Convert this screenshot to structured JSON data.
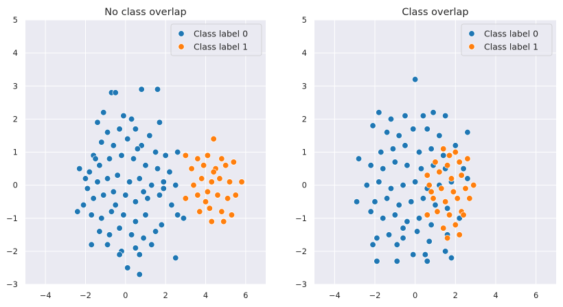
{
  "chart_data": [
    {
      "type": "scatter",
      "title": "No class overlap",
      "xlim": [
        -5,
        7
      ],
      "ylim": [
        -3,
        5
      ],
      "xticks": [
        -4,
        -2,
        0,
        2,
        4,
        6
      ],
      "yticks": [
        -3,
        -2,
        -1,
        0,
        1,
        2,
        3,
        4,
        5
      ],
      "grid": true,
      "legend_position": "top-right",
      "series": [
        {
          "name": "Class label 0",
          "color": "#1f77b4",
          "points": [
            [
              -1.4,
              1.9
            ],
            [
              -0.7,
              2.8
            ],
            [
              -0.5,
              2.8
            ],
            [
              0.8,
              2.9
            ],
            [
              1.6,
              2.9
            ],
            [
              -1.1,
              2.2
            ],
            [
              -0.1,
              2.1
            ],
            [
              0.3,
              2.0
            ],
            [
              1.7,
              1.9
            ],
            [
              -0.9,
              1.6
            ],
            [
              -0.3,
              1.7
            ],
            [
              0.5,
              1.7
            ],
            [
              1.2,
              1.5
            ],
            [
              -1.6,
              0.9
            ],
            [
              -1.2,
              1.3
            ],
            [
              -0.6,
              1.2
            ],
            [
              0.1,
              1.4
            ],
            [
              0.8,
              1.2
            ],
            [
              1.5,
              1.0
            ],
            [
              2.0,
              0.9
            ],
            [
              2.6,
              1.0
            ],
            [
              -2.3,
              0.5
            ],
            [
              -1.8,
              0.4
            ],
            [
              -1.3,
              0.6
            ],
            [
              -0.8,
              0.8
            ],
            [
              -0.2,
              0.9
            ],
            [
              0.4,
              0.8
            ],
            [
              1.0,
              0.6
            ],
            [
              1.6,
              0.5
            ],
            [
              2.2,
              0.4
            ],
            [
              -1.9,
              -0.1
            ],
            [
              -1.4,
              0.1
            ],
            [
              -0.9,
              0.2
            ],
            [
              -0.4,
              0.3
            ],
            [
              0.2,
              0.1
            ],
            [
              0.7,
              0.2
            ],
            [
              1.3,
              0.0
            ],
            [
              1.9,
              0.1
            ],
            [
              2.5,
              0.0
            ],
            [
              -2.1,
              -0.6
            ],
            [
              -1.6,
              -0.4
            ],
            [
              -1.1,
              -0.3
            ],
            [
              -0.6,
              -0.2
            ],
            [
              0.0,
              -0.3
            ],
            [
              0.5,
              -0.5
            ],
            [
              1.1,
              -0.4
            ],
            [
              1.7,
              -0.3
            ],
            [
              2.3,
              -0.6
            ],
            [
              -2.4,
              -0.8
            ],
            [
              -1.7,
              -0.9
            ],
            [
              -1.2,
              -1.0
            ],
            [
              -0.7,
              -0.8
            ],
            [
              -0.1,
              -0.9
            ],
            [
              0.5,
              -1.1
            ],
            [
              1.0,
              -0.9
            ],
            [
              1.8,
              -1.2
            ],
            [
              2.6,
              -0.9
            ],
            [
              2.9,
              -1.0
            ],
            [
              -1.3,
              -1.4
            ],
            [
              -0.8,
              -1.5
            ],
            [
              -0.3,
              -1.3
            ],
            [
              0.3,
              -1.5
            ],
            [
              0.9,
              -1.6
            ],
            [
              1.5,
              -1.4
            ],
            [
              -1.7,
              -1.8
            ],
            [
              -0.9,
              -1.8
            ],
            [
              -0.2,
              -2.0
            ],
            [
              0.5,
              -1.9
            ],
            [
              1.3,
              -1.8
            ],
            [
              -0.3,
              -2.1
            ],
            [
              0.7,
              -2.1
            ],
            [
              2.5,
              -2.2
            ],
            [
              0.1,
              -2.5
            ],
            [
              0.7,
              -2.7
            ],
            [
              -1.5,
              0.8
            ],
            [
              0.6,
              1.1
            ],
            [
              1.9,
              -0.1
            ],
            [
              -0.5,
              -0.6
            ],
            [
              0.9,
              -0.2
            ],
            [
              -2.0,
              0.2
            ]
          ]
        },
        {
          "name": "Class label 1",
          "color": "#ff7f0e",
          "points": [
            [
              3.0,
              0.9
            ],
            [
              4.4,
              1.4
            ],
            [
              3.6,
              0.8
            ],
            [
              4.1,
              0.9
            ],
            [
              4.8,
              0.8
            ],
            [
              3.3,
              0.5
            ],
            [
              3.9,
              0.6
            ],
            [
              4.5,
              0.5
            ],
            [
              5.0,
              0.6
            ],
            [
              5.4,
              0.7
            ],
            [
              3.4,
              0.0
            ],
            [
              3.8,
              0.2
            ],
            [
              4.3,
              0.1
            ],
            [
              4.7,
              0.2
            ],
            [
              5.2,
              0.1
            ],
            [
              5.8,
              0.1
            ],
            [
              3.0,
              -0.4
            ],
            [
              3.6,
              -0.3
            ],
            [
              4.1,
              -0.2
            ],
            [
              4.6,
              -0.3
            ],
            [
              5.1,
              -0.4
            ],
            [
              5.5,
              -0.3
            ],
            [
              3.7,
              -0.8
            ],
            [
              4.2,
              -0.7
            ],
            [
              4.8,
              -0.8
            ],
            [
              5.3,
              -0.9
            ],
            [
              4.3,
              -1.1
            ],
            [
              4.9,
              -1.1
            ],
            [
              4.4,
              0.4
            ],
            [
              4.0,
              -0.5
            ]
          ]
        }
      ]
    },
    {
      "type": "scatter",
      "title": "Class overlap",
      "xlim": [
        -5,
        7
      ],
      "ylim": [
        -3,
        5
      ],
      "xticks": [
        -4,
        -2,
        0,
        2,
        4,
        6
      ],
      "yticks": [
        -3,
        -2,
        -1,
        0,
        1,
        2,
        3,
        4,
        5
      ],
      "grid": true,
      "legend_position": "top-right",
      "series": [
        {
          "name": "Class label 0",
          "color": "#1f77b4",
          "points": [
            [
              0.0,
              3.2
            ],
            [
              -1.8,
              2.2
            ],
            [
              -1.2,
              2.0
            ],
            [
              -0.5,
              2.1
            ],
            [
              0.4,
              2.1
            ],
            [
              0.9,
              2.2
            ],
            [
              1.5,
              2.1
            ],
            [
              -2.1,
              1.8
            ],
            [
              -1.4,
              1.6
            ],
            [
              -0.8,
              1.5
            ],
            [
              -0.1,
              1.7
            ],
            [
              0.6,
              1.7
            ],
            [
              1.2,
              1.5
            ],
            [
              2.6,
              1.6
            ],
            [
              -1.7,
              1.0
            ],
            [
              -1.1,
              1.1
            ],
            [
              -0.5,
              1.2
            ],
            [
              0.2,
              1.0
            ],
            [
              0.8,
              1.1
            ],
            [
              1.4,
              0.9
            ],
            [
              2.0,
              1.2
            ],
            [
              -2.8,
              0.8
            ],
            [
              -2.2,
              0.6
            ],
            [
              -1.6,
              0.5
            ],
            [
              -1.0,
              0.7
            ],
            [
              -0.4,
              0.6
            ],
            [
              0.3,
              0.5
            ],
            [
              0.9,
              0.6
            ],
            [
              1.5,
              0.5
            ],
            [
              2.4,
              0.5
            ],
            [
              -2.4,
              0.0
            ],
            [
              -1.8,
              0.1
            ],
            [
              -1.2,
              -0.1
            ],
            [
              -0.6,
              0.0
            ],
            [
              0.0,
              0.1
            ],
            [
              0.6,
              -0.1
            ],
            [
              1.2,
              0.0
            ],
            [
              1.8,
              0.1
            ],
            [
              2.6,
              0.2
            ],
            [
              -2.9,
              -0.5
            ],
            [
              -2.0,
              -0.5
            ],
            [
              -1.4,
              -0.4
            ],
            [
              -0.8,
              -0.6
            ],
            [
              -0.2,
              -0.5
            ],
            [
              0.4,
              -0.4
            ],
            [
              1.0,
              -0.6
            ],
            [
              1.6,
              -0.7
            ],
            [
              -2.2,
              -0.8
            ],
            [
              -1.6,
              -1.0
            ],
            [
              -1.0,
              -0.9
            ],
            [
              -0.4,
              -1.1
            ],
            [
              0.2,
              -1.0
            ],
            [
              0.8,
              -1.2
            ],
            [
              2.2,
              -1.0
            ],
            [
              -1.3,
              -1.5
            ],
            [
              -0.6,
              -1.6
            ],
            [
              0.1,
              -1.4
            ],
            [
              0.7,
              -1.7
            ],
            [
              1.6,
              -1.5
            ],
            [
              -2.1,
              -1.8
            ],
            [
              -1.9,
              -1.6
            ],
            [
              -0.9,
              -1.8
            ],
            [
              -0.1,
              -2.1
            ],
            [
              0.5,
              -2.1
            ],
            [
              1.5,
              -2.0
            ],
            [
              -1.9,
              -2.3
            ],
            [
              -0.9,
              -2.3
            ],
            [
              0.6,
              -2.3
            ],
            [
              1.8,
              -2.2
            ],
            [
              -0.6,
              -1.3
            ]
          ]
        },
        {
          "name": "Class label 1",
          "color": "#ff7f0e",
          "points": [
            [
              1.4,
              1.1
            ],
            [
              2.0,
              1.0
            ],
            [
              1.0,
              0.7
            ],
            [
              1.6,
              0.6
            ],
            [
              2.2,
              0.7
            ],
            [
              2.6,
              0.8
            ],
            [
              0.6,
              0.3
            ],
            [
              1.2,
              0.4
            ],
            [
              1.8,
              0.2
            ],
            [
              2.3,
              0.3
            ],
            [
              0.7,
              0.0
            ],
            [
              1.3,
              -0.1
            ],
            [
              1.9,
              -0.2
            ],
            [
              2.5,
              -0.1
            ],
            [
              2.9,
              0.0
            ],
            [
              0.9,
              -0.4
            ],
            [
              1.5,
              -0.5
            ],
            [
              2.1,
              -0.4
            ],
            [
              2.7,
              -0.4
            ],
            [
              0.6,
              -0.9
            ],
            [
              1.1,
              -0.8
            ],
            [
              1.7,
              -0.9
            ],
            [
              2.3,
              -0.8
            ],
            [
              1.4,
              -1.3
            ],
            [
              2.0,
              -1.2
            ],
            [
              1.6,
              -1.6
            ],
            [
              2.2,
              -1.5
            ],
            [
              1.7,
              0.9
            ],
            [
              0.8,
              -0.2
            ],
            [
              2.4,
              -0.9
            ]
          ]
        }
      ]
    }
  ]
}
